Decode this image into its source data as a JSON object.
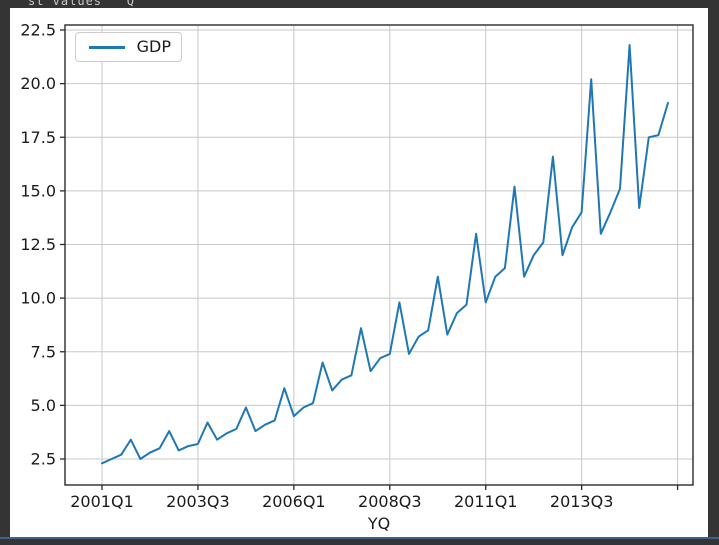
{
  "window": {
    "background_color": "#343434",
    "top_code_fragment": "st values   Q",
    "bottom_accent_color": "#3f6186"
  },
  "chart_data": {
    "type": "line",
    "title": "",
    "xlabel": "YQ",
    "ylabel": "",
    "grid": true,
    "legend_position": "upper left",
    "line_color": "#1f77b4",
    "ylim": [
      1.3,
      22.7
    ],
    "yticks": [
      2.5,
      5.0,
      7.5,
      10.0,
      12.5,
      15.0,
      17.5,
      20.0,
      22.5
    ],
    "xticks": [
      {
        "label": "2001Q1",
        "index": 0
      },
      {
        "label": "2003Q3",
        "index": 10
      },
      {
        "label": "2006Q1",
        "index": 20
      },
      {
        "label": "2008Q3",
        "index": 30
      },
      {
        "label": "2011Q1",
        "index": 40
      },
      {
        "label": "2013Q3",
        "index": 50
      },
      {
        "label": "",
        "index": 60
      }
    ],
    "x": [
      "2001Q1",
      "2001Q2",
      "2001Q3",
      "2001Q4",
      "2002Q1",
      "2002Q2",
      "2002Q3",
      "2002Q4",
      "2003Q1",
      "2003Q2",
      "2003Q3",
      "2003Q4",
      "2004Q1",
      "2004Q2",
      "2004Q3",
      "2004Q4",
      "2005Q1",
      "2005Q2",
      "2005Q3",
      "2005Q4",
      "2006Q1",
      "2006Q2",
      "2006Q3",
      "2006Q4",
      "2007Q1",
      "2007Q2",
      "2007Q3",
      "2007Q4",
      "2008Q1",
      "2008Q2",
      "2008Q3",
      "2008Q4",
      "2009Q1",
      "2009Q2",
      "2009Q3",
      "2009Q4",
      "2010Q1",
      "2010Q2",
      "2010Q3",
      "2010Q4",
      "2011Q1",
      "2011Q2",
      "2011Q3",
      "2011Q4",
      "2012Q1",
      "2012Q2",
      "2012Q3",
      "2012Q4",
      "2013Q1",
      "2013Q2",
      "2013Q3",
      "2013Q4",
      "2014Q1",
      "2014Q2",
      "2014Q3",
      "2014Q4",
      "2015Q1",
      "2015Q2",
      "2015Q3",
      "2015Q4"
    ],
    "series": [
      {
        "name": "GDP",
        "color": "#1f77b4",
        "values": [
          2.3,
          2.5,
          2.7,
          3.4,
          2.5,
          2.8,
          3.0,
          3.8,
          2.9,
          3.1,
          3.2,
          4.2,
          3.4,
          3.7,
          3.9,
          4.9,
          3.8,
          4.1,
          4.3,
          5.8,
          4.5,
          4.9,
          5.1,
          7.0,
          5.7,
          6.2,
          6.4,
          8.6,
          6.6,
          7.2,
          7.4,
          9.8,
          7.4,
          8.2,
          8.5,
          11.0,
          8.3,
          9.3,
          9.7,
          13.0,
          9.8,
          11.0,
          11.4,
          15.2,
          11.0,
          12.0,
          12.6,
          16.6,
          12.0,
          13.3,
          14.0,
          20.2,
          13.0,
          14.0,
          15.1,
          21.8,
          14.2,
          17.5,
          17.6,
          19.1
        ]
      }
    ]
  }
}
